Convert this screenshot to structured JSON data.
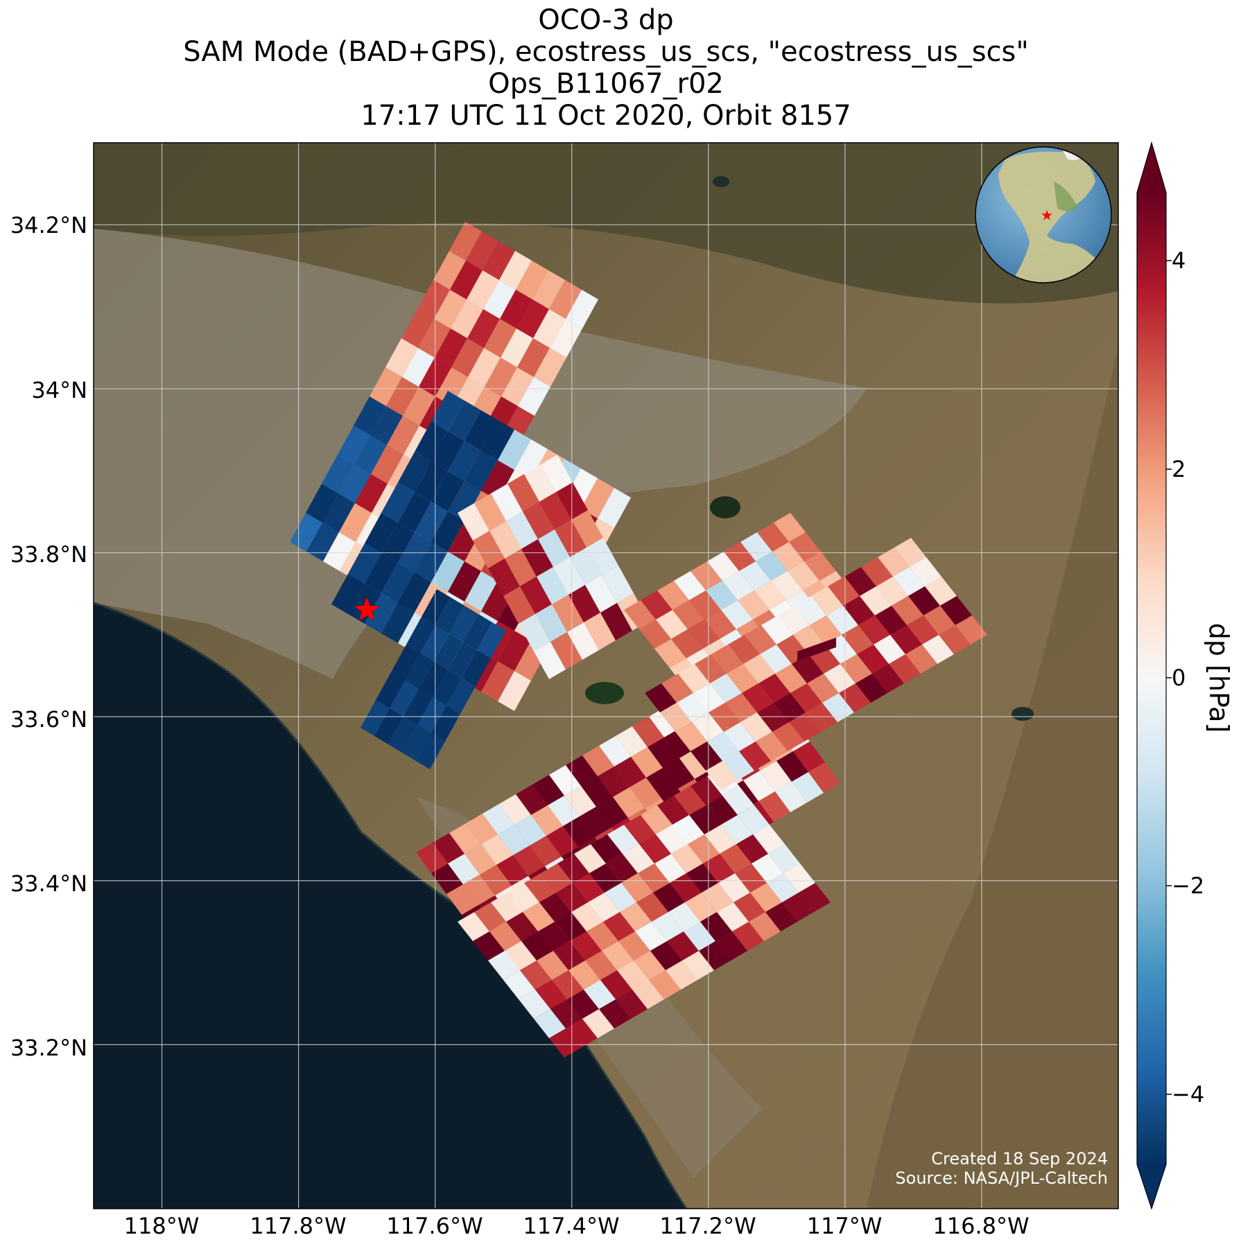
{
  "title": {
    "line1": "OCO-3 dp",
    "line2": "SAM Mode (BAD+GPS), ecostress_us_scs, \"ecostress_us_scs\"",
    "line3": "Ops_B11067_r02",
    "line4": "17:17 UTC 11 Oct 2020, Orbit 8157"
  },
  "map": {
    "lat_ticks": [
      "34.2°N",
      "34°N",
      "33.8°N",
      "33.6°N",
      "33.4°N",
      "33.2°N"
    ],
    "lon_ticks": [
      "118°W",
      "117.8°W",
      "117.6°W",
      "117.4°W",
      "117.2°W",
      "117°W",
      "116.8°W"
    ],
    "lat_range": [
      33.0,
      34.3
    ],
    "lon_range": [
      -118.1,
      -116.6
    ],
    "target_marker": {
      "lat": 33.73,
      "lon": -117.7,
      "color": "#ff0000",
      "shape": "star"
    },
    "basemap": "satellite imagery"
  },
  "colorbar": {
    "label": "dp [hPa]",
    "ticks": [
      "4",
      "2",
      "0",
      "−2",
      "−4"
    ],
    "range": [
      -4.5,
      4.5
    ],
    "colormap": "RdBu_r",
    "extend": "both"
  },
  "inset_globe": {
    "marker_color": "#ff0000"
  },
  "credits": {
    "created": "Created 18 Sep 2024",
    "source": "Source: NASA/JPL-Caltech"
  },
  "colors": {
    "ocean": "#0b1d2b",
    "land": "#7a6a4c",
    "urban": "#8a8478",
    "mountain": "#4e4a32",
    "grid": "#d8d8d8"
  }
}
